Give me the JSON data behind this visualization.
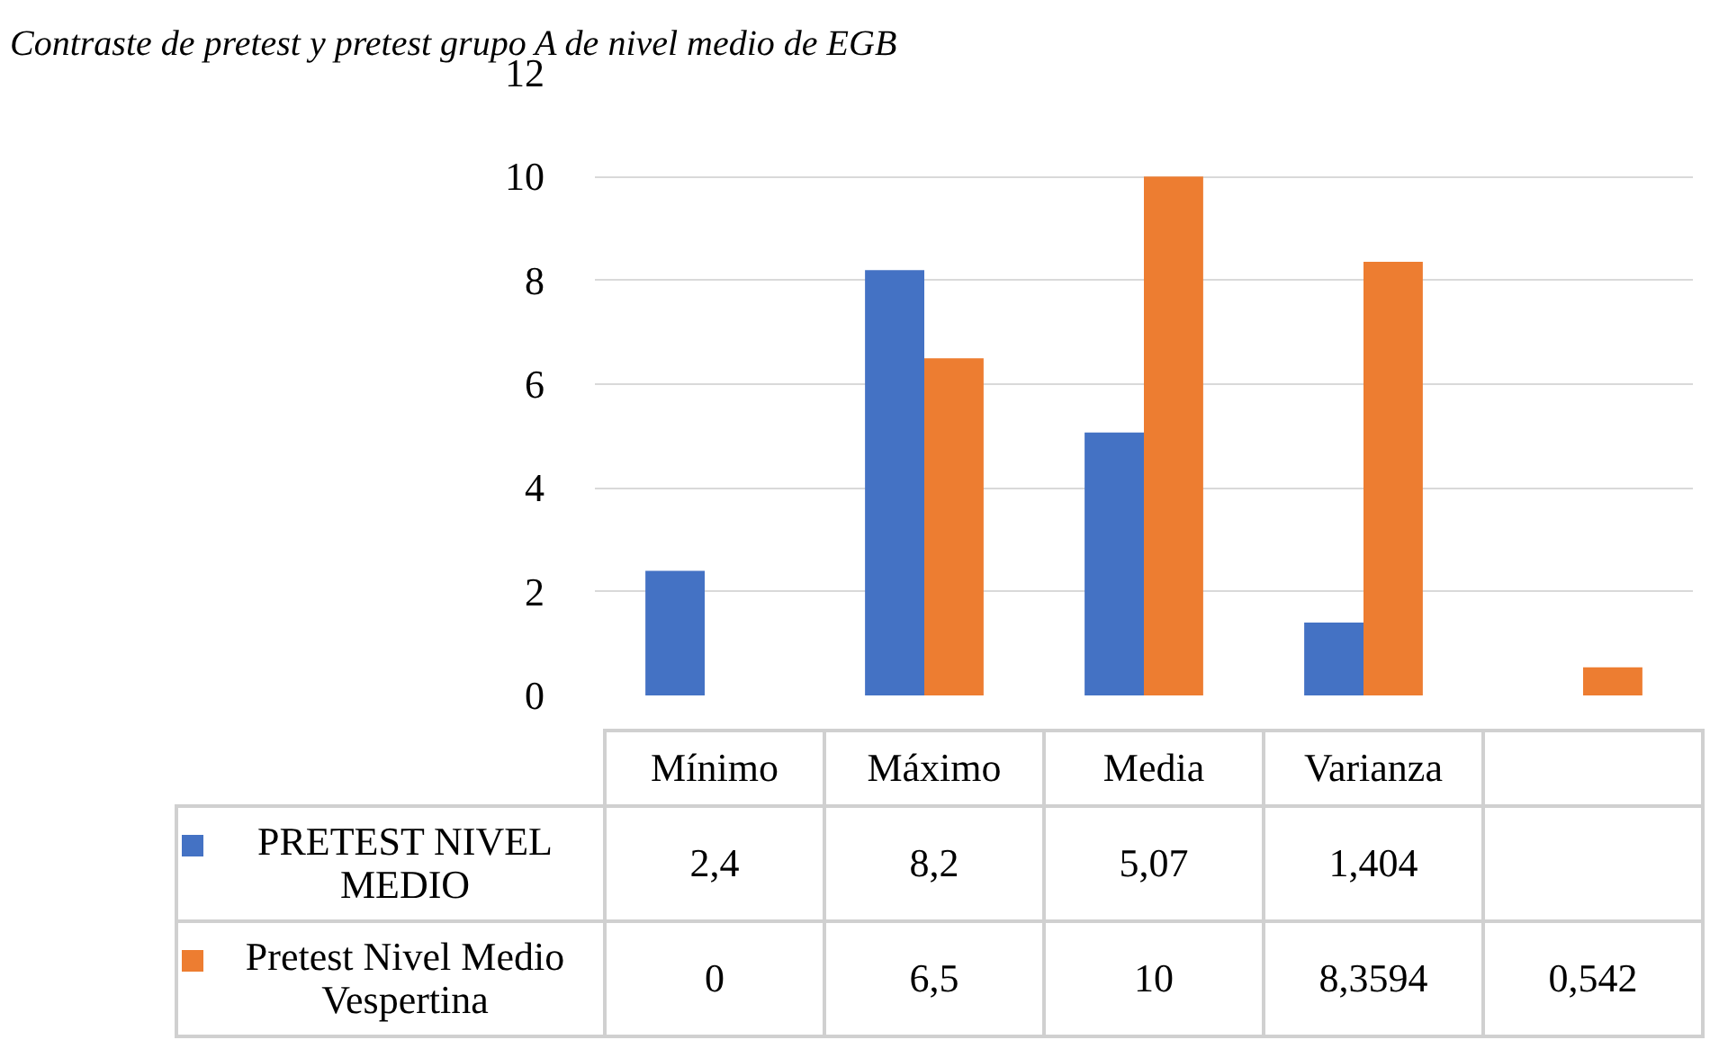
{
  "chart_data": {
    "type": "bar",
    "title": "Contraste de pretest y pretest grupo A de nivel medio de EGB",
    "categories": [
      "Mínimo",
      "Máximo",
      "Media",
      "Varianza",
      null
    ],
    "series": [
      {
        "name": "PRETEST NIVEL MEDIO",
        "color": "#4472c4",
        "values": [
          2.4,
          8.2,
          5.07,
          1.404,
          null
        ],
        "value_labels": [
          "2,4",
          "8,2",
          "5,07",
          "1,404",
          null
        ]
      },
      {
        "name": "Pretest Nivel Medio Vespertina",
        "color": "#ed7d31",
        "values": [
          0,
          6.5,
          10,
          8.3594,
          0.542
        ],
        "value_labels": [
          "0",
          "6,5",
          "10",
          "8,3594",
          "0,542"
        ]
      }
    ],
    "ylim": [
      0,
      12
    ],
    "yticks": [
      0,
      2,
      4,
      6,
      8,
      10,
      12
    ],
    "grid": "y",
    "legend": "bottom"
  }
}
